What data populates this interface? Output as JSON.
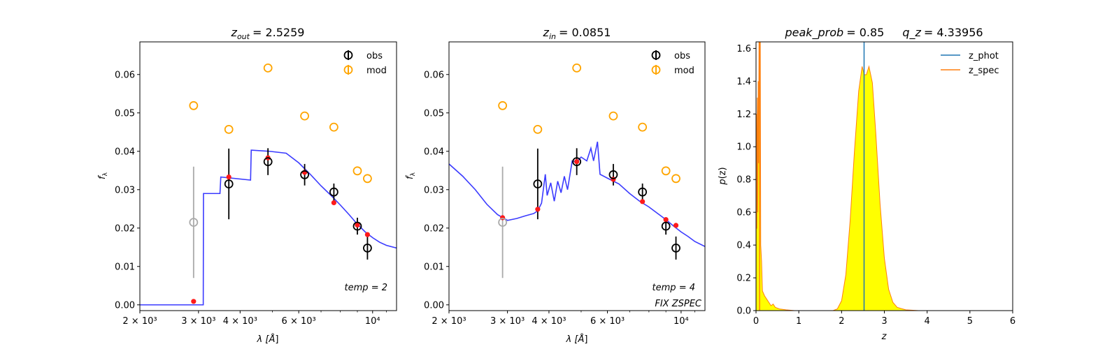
{
  "colors": {
    "obs": "#000000",
    "obs_masked": "#aaaaaa",
    "mod": "#ffa500",
    "model_point": "#ff1a1a",
    "sed_line": "#3b3bff",
    "z_phot": "#1f77b4",
    "z_spec": "#ff7f0e",
    "pdf_fill": "#ffff00"
  },
  "chart_data": [
    {
      "type": "scatter",
      "title": {
        "var": "z",
        "sub": "out",
        "value": "= 2.5259"
      },
      "xlabel": {
        "pre": "λ [",
        "var": "Å",
        "post": "]"
      },
      "ylabel": {
        "var": "f",
        "sub": "λ"
      },
      "x_scale": "log",
      "xlim": [
        2000,
        11800
      ],
      "ylim": [
        -0.0015,
        0.0685
      ],
      "x_ticks": [
        {
          "value": 2000,
          "label": "2 × 10³"
        },
        {
          "value": 3000,
          "label": "3 × 10³"
        },
        {
          "value": 4000,
          "label": "4 × 10³"
        },
        {
          "value": 6000,
          "label": "6 × 10³"
        },
        {
          "value": 10000,
          "label": "10⁴"
        }
      ],
      "y_ticks": [
        {
          "value": 0.0,
          "label": "0.00"
        },
        {
          "value": 0.01,
          "label": "0.01"
        },
        {
          "value": 0.02,
          "label": "0.02"
        },
        {
          "value": 0.03,
          "label": "0.03"
        },
        {
          "value": 0.04,
          "label": "0.04"
        },
        {
          "value": 0.05,
          "label": "0.05"
        },
        {
          "value": 0.06,
          "label": "0.06"
        }
      ],
      "legend": {
        "position": "top-right",
        "entries": [
          "obs",
          "mod"
        ]
      },
      "annotations": [
        {
          "text": "temp = 2"
        }
      ],
      "sed_line": [
        [
          2000,
          0.0
        ],
        [
          3100,
          0.0
        ],
        [
          3105,
          0.029
        ],
        [
          3480,
          0.029
        ],
        [
          3500,
          0.0333
        ],
        [
          4300,
          0.0325
        ],
        [
          4320,
          0.0403
        ],
        [
          4900,
          0.04
        ],
        [
          5500,
          0.0395
        ],
        [
          6000,
          0.037
        ],
        [
          6500,
          0.034
        ],
        [
          7000,
          0.031
        ],
        [
          7500,
          0.0285
        ],
        [
          8000,
          0.026
        ],
        [
          8500,
          0.0235
        ],
        [
          9000,
          0.021
        ],
        [
          9500,
          0.019
        ],
        [
          10000,
          0.0175
        ],
        [
          10500,
          0.0163
        ],
        [
          11000,
          0.0155
        ],
        [
          11800,
          0.0148
        ]
      ],
      "obs": [
        {
          "x": 2900,
          "y": 0.0215,
          "err": 0.0145,
          "masked": true
        },
        {
          "x": 3700,
          "y": 0.0315,
          "err": 0.0092,
          "masked": false
        },
        {
          "x": 4850,
          "y": 0.0373,
          "err": 0.0035,
          "masked": false
        },
        {
          "x": 6250,
          "y": 0.0339,
          "err": 0.0028,
          "masked": false
        },
        {
          "x": 7650,
          "y": 0.0294,
          "err": 0.0022,
          "masked": false
        },
        {
          "x": 9000,
          "y": 0.0205,
          "err": 0.0022,
          "masked": false
        },
        {
          "x": 9650,
          "y": 0.0148,
          "err": 0.003,
          "masked": false
        }
      ],
      "mod": [
        {
          "x": 2900,
          "y": 0.0519
        },
        {
          "x": 3700,
          "y": 0.0457
        },
        {
          "x": 4850,
          "y": 0.0617
        },
        {
          "x": 6250,
          "y": 0.0492
        },
        {
          "x": 7650,
          "y": 0.0463
        },
        {
          "x": 9000,
          "y": 0.0349
        },
        {
          "x": 9650,
          "y": 0.0329
        }
      ],
      "model_points": [
        {
          "x": 2900,
          "y": 0.0009
        },
        {
          "x": 3700,
          "y": 0.0333
        },
        {
          "x": 4850,
          "y": 0.0383
        },
        {
          "x": 6250,
          "y": 0.0345
        },
        {
          "x": 7650,
          "y": 0.0266
        },
        {
          "x": 9000,
          "y": 0.0208
        },
        {
          "x": 9650,
          "y": 0.0183
        }
      ]
    },
    {
      "type": "scatter",
      "title": {
        "var": "z",
        "sub": "in",
        "value": "= 0.0851"
      },
      "xlabel": {
        "pre": "λ [",
        "var": "Å",
        "post": "]"
      },
      "ylabel": {
        "var": "f",
        "sub": "λ"
      },
      "x_scale": "log",
      "xlim": [
        2000,
        11800
      ],
      "ylim": [
        -0.0015,
        0.0685
      ],
      "x_ticks": [
        {
          "value": 2000,
          "label": "2 × 10³"
        },
        {
          "value": 3000,
          "label": "3 × 10³"
        },
        {
          "value": 4000,
          "label": "4 × 10³"
        },
        {
          "value": 6000,
          "label": "6 × 10³"
        },
        {
          "value": 10000,
          "label": "10⁴"
        }
      ],
      "y_ticks": [
        {
          "value": 0.0,
          "label": "0.00"
        },
        {
          "value": 0.01,
          "label": "0.01"
        },
        {
          "value": 0.02,
          "label": "0.02"
        },
        {
          "value": 0.03,
          "label": "0.03"
        },
        {
          "value": 0.04,
          "label": "0.04"
        },
        {
          "value": 0.05,
          "label": "0.05"
        },
        {
          "value": 0.06,
          "label": "0.06"
        }
      ],
      "legend": {
        "position": "top-right",
        "entries": [
          "obs",
          "mod"
        ]
      },
      "annotations": [
        {
          "text": "temp = 4"
        },
        {
          "text": "FIX ZSPEC"
        }
      ],
      "sed_line": [
        [
          2000,
          0.0367
        ],
        [
          2200,
          0.0335
        ],
        [
          2400,
          0.03
        ],
        [
          2600,
          0.0262
        ],
        [
          2800,
          0.0235
        ],
        [
          3000,
          0.022
        ],
        [
          3200,
          0.0225
        ],
        [
          3400,
          0.0232
        ],
        [
          3600,
          0.0238
        ],
        [
          3700,
          0.0245
        ],
        [
          3800,
          0.0265
        ],
        [
          3900,
          0.034
        ],
        [
          3950,
          0.0285
        ],
        [
          4050,
          0.0318
        ],
        [
          4150,
          0.027
        ],
        [
          4250,
          0.0322
        ],
        [
          4350,
          0.0292
        ],
        [
          4450,
          0.0335
        ],
        [
          4550,
          0.03
        ],
        [
          4700,
          0.0375
        ],
        [
          4850,
          0.0372
        ],
        [
          5000,
          0.0385
        ],
        [
          5200,
          0.0375
        ],
        [
          5350,
          0.0408
        ],
        [
          5450,
          0.0375
        ],
        [
          5600,
          0.0425
        ],
        [
          5700,
          0.034
        ],
        [
          6000,
          0.033
        ],
        [
          6500,
          0.0315
        ],
        [
          7000,
          0.029
        ],
        [
          7500,
          0.027
        ],
        [
          8000,
          0.0255
        ],
        [
          8500,
          0.0238
        ],
        [
          9000,
          0.0222
        ],
        [
          9500,
          0.0205
        ],
        [
          10000,
          0.019
        ],
        [
          10500,
          0.0178
        ],
        [
          11000,
          0.0165
        ],
        [
          11800,
          0.0152
        ]
      ],
      "obs": [
        {
          "x": 2900,
          "y": 0.0215,
          "err": 0.0145,
          "masked": true
        },
        {
          "x": 3700,
          "y": 0.0315,
          "err": 0.0092,
          "masked": false
        },
        {
          "x": 4850,
          "y": 0.0373,
          "err": 0.0035,
          "masked": false
        },
        {
          "x": 6250,
          "y": 0.0339,
          "err": 0.0028,
          "masked": false
        },
        {
          "x": 7650,
          "y": 0.0294,
          "err": 0.0022,
          "masked": false
        },
        {
          "x": 9000,
          "y": 0.0205,
          "err": 0.0022,
          "masked": false
        },
        {
          "x": 9650,
          "y": 0.0148,
          "err": 0.003,
          "masked": false
        }
      ],
      "mod": [
        {
          "x": 2900,
          "y": 0.0519
        },
        {
          "x": 3700,
          "y": 0.0457
        },
        {
          "x": 4850,
          "y": 0.0617
        },
        {
          "x": 6250,
          "y": 0.0492
        },
        {
          "x": 7650,
          "y": 0.0463
        },
        {
          "x": 9000,
          "y": 0.0349
        },
        {
          "x": 9650,
          "y": 0.0329
        }
      ],
      "model_points": [
        {
          "x": 2900,
          "y": 0.0227
        },
        {
          "x": 3700,
          "y": 0.0249
        },
        {
          "x": 4850,
          "y": 0.0373
        },
        {
          "x": 6250,
          "y": 0.0327
        },
        {
          "x": 7650,
          "y": 0.0269
        },
        {
          "x": 9000,
          "y": 0.0222
        },
        {
          "x": 9650,
          "y": 0.0207
        }
      ]
    },
    {
      "type": "area",
      "title": {
        "left_var": "peak_prob",
        "left_value": "= 0.85",
        "right_var": "q_z",
        "right_value": "= 4.33956"
      },
      "xlabel": {
        "var": "z"
      },
      "ylabel": {
        "pre": "",
        "var": "p",
        "post": "(z)"
      },
      "xlim": [
        0,
        6
      ],
      "ylim": [
        0,
        1.64
      ],
      "x_ticks": [
        {
          "value": 0,
          "label": "0"
        },
        {
          "value": 1,
          "label": "1"
        },
        {
          "value": 2,
          "label": "2"
        },
        {
          "value": 3,
          "label": "3"
        },
        {
          "value": 4,
          "label": "4"
        },
        {
          "value": 5,
          "label": "5"
        },
        {
          "value": 6,
          "label": "6"
        }
      ],
      "y_ticks": [
        {
          "value": 0.0,
          "label": "0.0"
        },
        {
          "value": 0.2,
          "label": "0.2"
        },
        {
          "value": 0.4,
          "label": "0.4"
        },
        {
          "value": 0.6,
          "label": "0.6"
        },
        {
          "value": 0.8,
          "label": "0.8"
        },
        {
          "value": 1.0,
          "label": "1.0"
        },
        {
          "value": 1.2,
          "label": "1.2"
        },
        {
          "value": 1.4,
          "label": "1.4"
        },
        {
          "value": 1.6,
          "label": "1.6"
        }
      ],
      "legend": {
        "position": "top-right",
        "entries": [
          "z_phot",
          "z_spec"
        ]
      },
      "z_phot": 2.5259,
      "z_spec": 0.0851,
      "pdf": [
        [
          0.0,
          0.0
        ],
        [
          0.01,
          1.2
        ],
        [
          0.02,
          0.5
        ],
        [
          0.03,
          1.3
        ],
        [
          0.04,
          0.6
        ],
        [
          0.05,
          1.4
        ],
        [
          0.06,
          0.9
        ],
        [
          0.07,
          1.64
        ],
        [
          0.08,
          1.64
        ],
        [
          0.09,
          1.64
        ],
        [
          0.1,
          1.64
        ],
        [
          0.11,
          0.4
        ],
        [
          0.13,
          0.3
        ],
        [
          0.15,
          0.12
        ],
        [
          0.2,
          0.09
        ],
        [
          0.25,
          0.07
        ],
        [
          0.3,
          0.05
        ],
        [
          0.35,
          0.03
        ],
        [
          0.4,
          0.04
        ],
        [
          0.45,
          0.02
        ],
        [
          0.55,
          0.01
        ],
        [
          0.7,
          0.005
        ],
        [
          0.9,
          0.0
        ],
        [
          1.8,
          0.0
        ],
        [
          1.9,
          0.01
        ],
        [
          2.0,
          0.06
        ],
        [
          2.1,
          0.22
        ],
        [
          2.2,
          0.55
        ],
        [
          2.3,
          0.97
        ],
        [
          2.4,
          1.34
        ],
        [
          2.48,
          1.49
        ],
        [
          2.53,
          1.44
        ],
        [
          2.58,
          1.44
        ],
        [
          2.64,
          1.49
        ],
        [
          2.72,
          1.39
        ],
        [
          2.8,
          1.08
        ],
        [
          2.9,
          0.65
        ],
        [
          3.0,
          0.32
        ],
        [
          3.1,
          0.13
        ],
        [
          3.2,
          0.05
        ],
        [
          3.3,
          0.02
        ],
        [
          3.5,
          0.005
        ],
        [
          3.8,
          0.0
        ],
        [
          5.0,
          0.0
        ]
      ]
    }
  ]
}
